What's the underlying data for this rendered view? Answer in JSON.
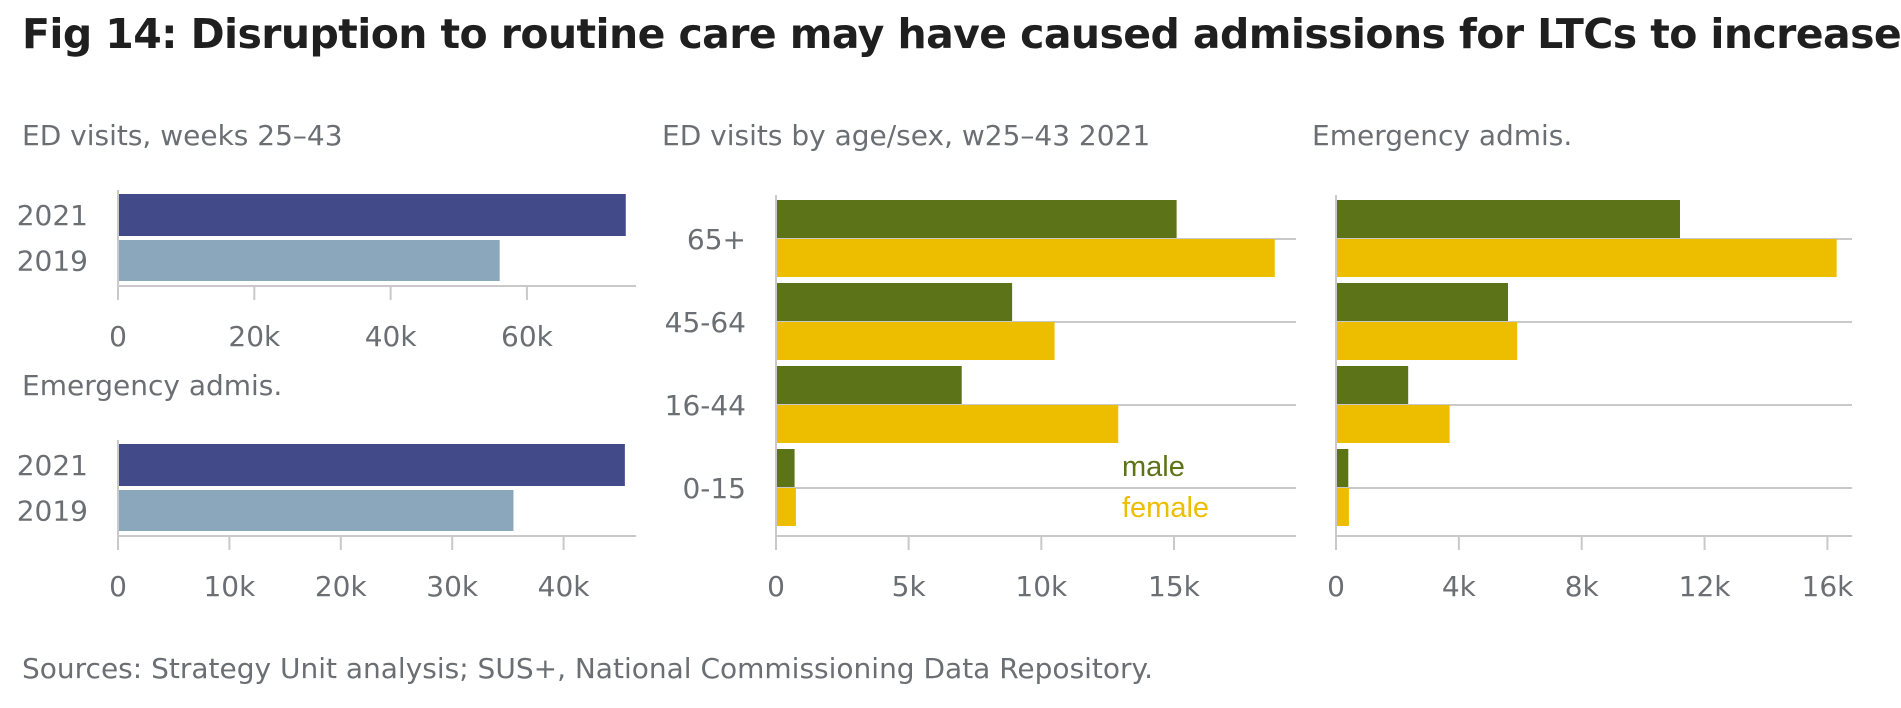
{
  "title": "Fig 14: Disruption to routine care may have caused admissions for LTCs to increase",
  "source": "Sources: Strategy Unit analysis; SUS+, National Commissioning Data Repository.",
  "colors": {
    "year_2021": "#434a89",
    "year_2019": "#8aa7bc",
    "male": "#5c7317",
    "female": "#edbe00",
    "axis": "#c9c9c9",
    "text": "#6b6f73"
  },
  "chart_data": [
    {
      "type": "bar",
      "orientation": "horizontal",
      "title": "ED visits, weeks 25–43",
      "categories": [
        "2021",
        "2019"
      ],
      "values": [
        74500,
        56000
      ],
      "xlim": [
        0,
        76000
      ],
      "xticks": [
        0,
        20000,
        40000,
        60000
      ],
      "xtick_labels": [
        "0",
        "20k",
        "40k",
        "60k"
      ]
    },
    {
      "type": "bar",
      "orientation": "horizontal",
      "title": "Emergency admis.",
      "categories": [
        "2021",
        "2019"
      ],
      "values": [
        45500,
        35500
      ],
      "xlim": [
        0,
        46500
      ],
      "xticks": [
        0,
        10000,
        20000,
        30000,
        40000
      ],
      "xtick_labels": [
        "0",
        "10k",
        "20k",
        "30k",
        "40k"
      ]
    },
    {
      "type": "bar",
      "orientation": "horizontal",
      "title": "ED visits by age/sex, w25–43 2021",
      "categories": [
        "65+",
        "45-64",
        "16-44",
        "0-15"
      ],
      "series": [
        {
          "name": "male",
          "values": [
            15100,
            8900,
            7000,
            700
          ]
        },
        {
          "name": "female",
          "values": [
            18800,
            10500,
            12900,
            750
          ]
        }
      ],
      "xlim": [
        0,
        19600
      ],
      "xticks": [
        0,
        5000,
        10000,
        15000
      ],
      "xtick_labels": [
        "0",
        "5k",
        "10k",
        "15k"
      ],
      "legend": "bottom-right"
    },
    {
      "type": "bar",
      "orientation": "horizontal",
      "title": "Emergency admis.",
      "categories": [
        "65+",
        "45-64",
        "16-44",
        "0-15"
      ],
      "series": [
        {
          "name": "male",
          "values": [
            11200,
            5600,
            2350,
            400
          ]
        },
        {
          "name": "female",
          "values": [
            16300,
            5900,
            3700,
            420
          ]
        }
      ],
      "xlim": [
        0,
        16800
      ],
      "xticks": [
        0,
        4000,
        8000,
        12000,
        16000
      ],
      "xtick_labels": [
        "0",
        "4k",
        "8k",
        "12k",
        "16k"
      ]
    }
  ]
}
